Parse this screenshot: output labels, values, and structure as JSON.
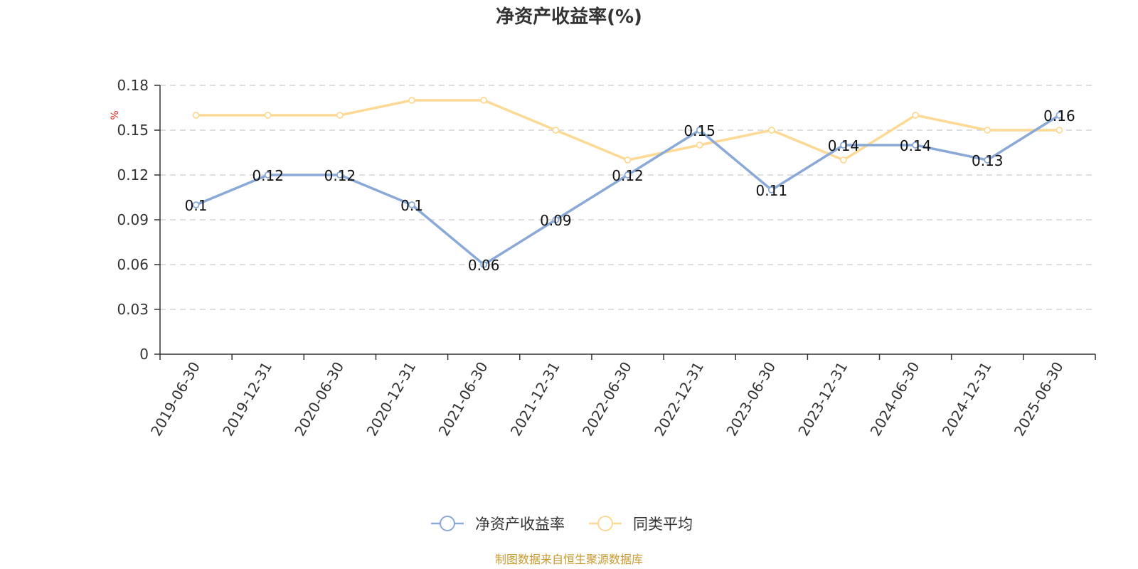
{
  "chart_data": {
    "type": "line",
    "title": "净资产收益率(%)",
    "ylabel": "%",
    "xlabel": "",
    "categories": [
      "2019-06-30",
      "2019-12-31",
      "2020-06-30",
      "2020-12-31",
      "2021-06-30",
      "2021-12-31",
      "2022-06-30",
      "2022-12-31",
      "2023-06-30",
      "2023-12-31",
      "2024-06-30",
      "2024-12-31",
      "2025-06-30"
    ],
    "ylim": [
      0,
      0.18
    ],
    "yticks": [
      "0",
      "0.03",
      "0.06",
      "0.09",
      "0.12",
      "0.15",
      "0.18"
    ],
    "grid": true,
    "legend_position": "bottom",
    "series": [
      {
        "name": "净资产收益率",
        "color": "#8aa9d6",
        "values": [
          0.1,
          0.12,
          0.12,
          0.1,
          0.06,
          0.09,
          0.12,
          0.15,
          0.11,
          0.14,
          0.14,
          0.13,
          0.16
        ],
        "labels": [
          "0.1",
          "0.12",
          "0.12",
          "0.1",
          "0.06",
          "0.09",
          "0.12",
          "0.15",
          "0.11",
          "0.14",
          "0.14",
          "0.13",
          "0.16"
        ]
      },
      {
        "name": "同类平均",
        "color": "#fcd995",
        "values": [
          0.16,
          0.16,
          0.16,
          0.17,
          0.17,
          0.15,
          0.13,
          0.14,
          0.15,
          0.13,
          0.16,
          0.15,
          0.15
        ]
      }
    ]
  },
  "footer": {
    "source": "制图数据来自恒生聚源数据库"
  }
}
